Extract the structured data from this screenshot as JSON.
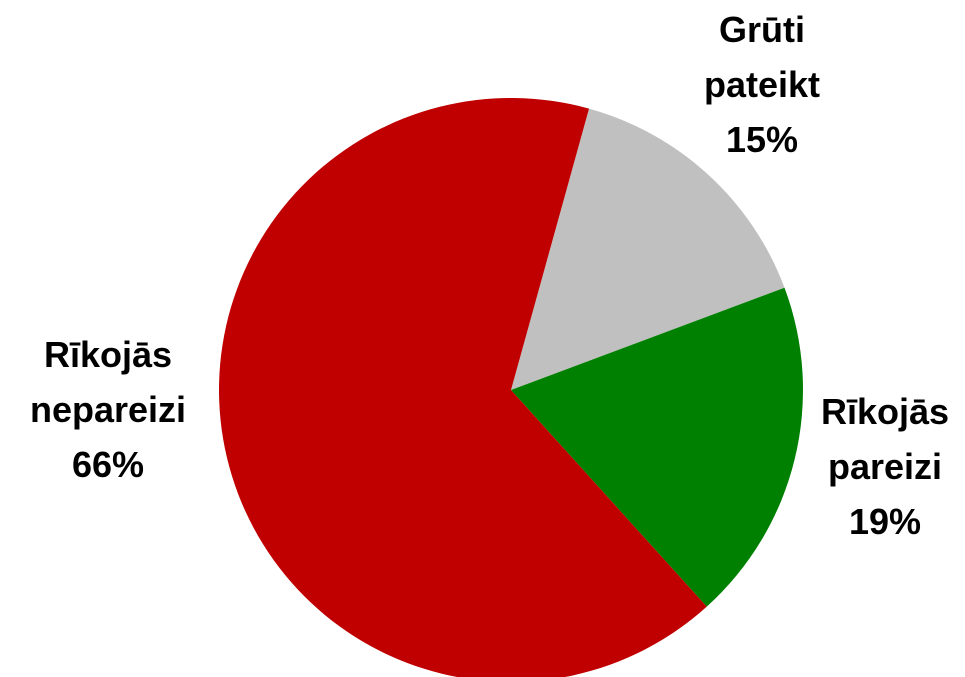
{
  "chart_data": {
    "type": "pie",
    "categories": [
      "Grūti pateikt",
      "Rīkojās pareizi",
      "Rīkojās nepareizi"
    ],
    "values": [
      15,
      19,
      66
    ],
    "value_labels": [
      "15%",
      "19%",
      "66%"
    ],
    "colors": [
      "#c0c0c0",
      "#008000",
      "#c00000"
    ]
  }
}
